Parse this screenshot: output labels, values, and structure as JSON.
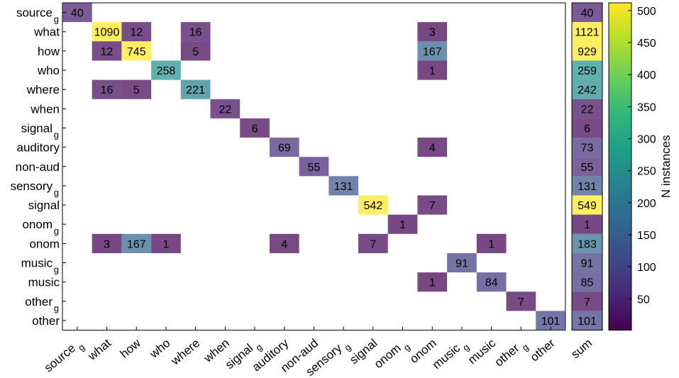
{
  "chart_data": {
    "type": "heatmap",
    "title": "",
    "xlabel": "",
    "ylabel": "",
    "rows": [
      {
        "base": "source",
        "sub": "g"
      },
      {
        "base": "what",
        "sub": ""
      },
      {
        "base": "how",
        "sub": ""
      },
      {
        "base": "who",
        "sub": ""
      },
      {
        "base": "where",
        "sub": ""
      },
      {
        "base": "when",
        "sub": ""
      },
      {
        "base": "signal",
        "sub": "g"
      },
      {
        "base": "auditory",
        "sub": ""
      },
      {
        "base": "non-aud",
        "sub": ""
      },
      {
        "base": "sensory",
        "sub": "g"
      },
      {
        "base": "signal",
        "sub": ""
      },
      {
        "base": "onom",
        "sub": "g"
      },
      {
        "base": "onom",
        "sub": ""
      },
      {
        "base": "music",
        "sub": "g"
      },
      {
        "base": "music",
        "sub": ""
      },
      {
        "base": "other",
        "sub": "g"
      },
      {
        "base": "other",
        "sub": ""
      }
    ],
    "columns": [
      {
        "base": "source",
        "sub": "g"
      },
      {
        "base": "what",
        "sub": ""
      },
      {
        "base": "how",
        "sub": ""
      },
      {
        "base": "who",
        "sub": ""
      },
      {
        "base": "where",
        "sub": ""
      },
      {
        "base": "when",
        "sub": ""
      },
      {
        "base": "signal",
        "sub": "g"
      },
      {
        "base": "auditory",
        "sub": ""
      },
      {
        "base": "non-aud",
        "sub": ""
      },
      {
        "base": "sensory",
        "sub": "g"
      },
      {
        "base": "signal",
        "sub": ""
      },
      {
        "base": "onom",
        "sub": "g"
      },
      {
        "base": "onom",
        "sub": ""
      },
      {
        "base": "music",
        "sub": "g"
      },
      {
        "base": "music",
        "sub": ""
      },
      {
        "base": "other",
        "sub": "g"
      },
      {
        "base": "other",
        "sub": ""
      }
    ],
    "cells": [
      {
        "row": 0,
        "col": 0,
        "value": 40
      },
      {
        "row": 1,
        "col": 1,
        "value": 1090
      },
      {
        "row": 1,
        "col": 2,
        "value": 12
      },
      {
        "row": 1,
        "col": 4,
        "value": 16
      },
      {
        "row": 1,
        "col": 12,
        "value": 3
      },
      {
        "row": 2,
        "col": 1,
        "value": 12
      },
      {
        "row": 2,
        "col": 2,
        "value": 745
      },
      {
        "row": 2,
        "col": 4,
        "value": 5
      },
      {
        "row": 2,
        "col": 12,
        "value": 167
      },
      {
        "row": 3,
        "col": 3,
        "value": 258
      },
      {
        "row": 3,
        "col": 12,
        "value": 1
      },
      {
        "row": 4,
        "col": 1,
        "value": 16
      },
      {
        "row": 4,
        "col": 2,
        "value": 5
      },
      {
        "row": 4,
        "col": 4,
        "value": 221
      },
      {
        "row": 5,
        "col": 5,
        "value": 22
      },
      {
        "row": 6,
        "col": 6,
        "value": 6
      },
      {
        "row": 7,
        "col": 7,
        "value": 69
      },
      {
        "row": 7,
        "col": 12,
        "value": 4
      },
      {
        "row": 8,
        "col": 8,
        "value": 55
      },
      {
        "row": 9,
        "col": 9,
        "value": 131
      },
      {
        "row": 10,
        "col": 10,
        "value": 542
      },
      {
        "row": 10,
        "col": 12,
        "value": 7
      },
      {
        "row": 11,
        "col": 11,
        "value": 1
      },
      {
        "row": 12,
        "col": 1,
        "value": 3
      },
      {
        "row": 12,
        "col": 2,
        "value": 167
      },
      {
        "row": 12,
        "col": 3,
        "value": 1
      },
      {
        "row": 12,
        "col": 7,
        "value": 4
      },
      {
        "row": 12,
        "col": 10,
        "value": 7
      },
      {
        "row": 12,
        "col": 14,
        "value": 1
      },
      {
        "row": 13,
        "col": 13,
        "value": 91
      },
      {
        "row": 14,
        "col": 12,
        "value": 1
      },
      {
        "row": 14,
        "col": 14,
        "value": 84
      },
      {
        "row": 15,
        "col": 15,
        "value": 7
      },
      {
        "row": 16,
        "col": 16,
        "value": 101
      }
    ],
    "sum_label": "sum",
    "sums": [
      40,
      1121,
      929,
      259,
      242,
      22,
      6,
      73,
      55,
      131,
      549,
      1,
      183,
      91,
      85,
      7,
      101
    ],
    "colorbar": {
      "label": "N instances",
      "min": 1,
      "max": 512,
      "ticks": [
        50,
        100,
        150,
        200,
        250,
        300,
        350,
        400,
        450,
        500
      ],
      "colormap": "viridis",
      "colormap_stops": [
        "#440154",
        "#482878",
        "#3e4989",
        "#31688e",
        "#26828e",
        "#1f9e89",
        "#35b779",
        "#6ece58",
        "#b5de2b",
        "#fde725"
      ]
    },
    "grid": false
  }
}
